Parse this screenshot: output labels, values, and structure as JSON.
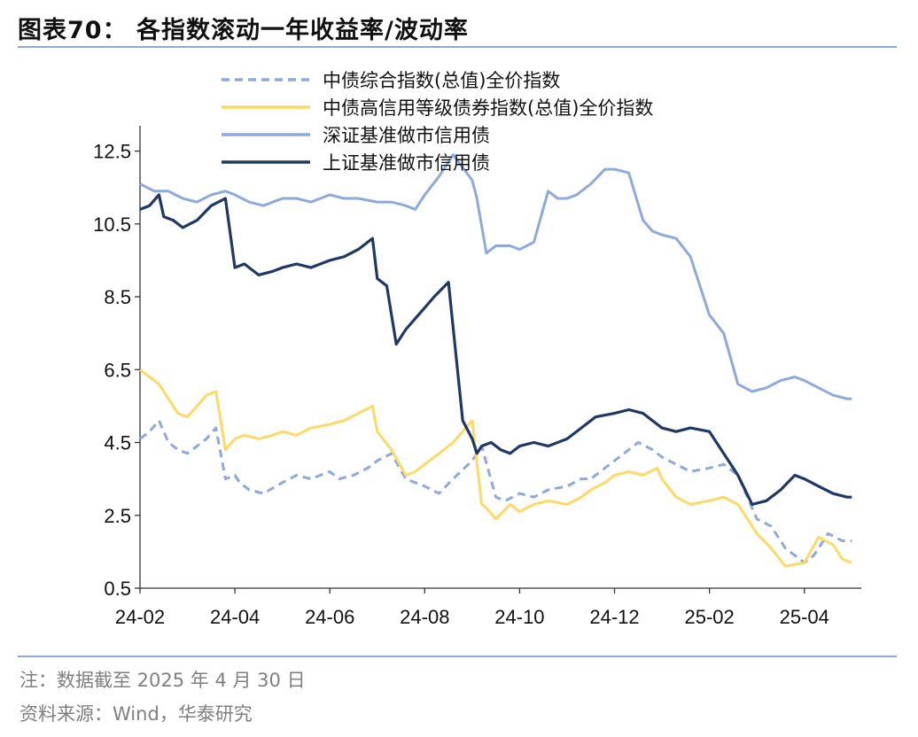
{
  "header": {
    "title": "图表70： 各指数滚动一年收益率/波动率"
  },
  "footer": {
    "note": "注：数据截至 2025 年 4 月 30 日",
    "source": "资料来源：Wind，华泰研究"
  },
  "chart_data": {
    "type": "line",
    "title": "图表70： 各指数滚动一年收益率/波动率",
    "xlabel": "",
    "ylabel": "",
    "x_ticks": [
      "24-02",
      "24-04",
      "24-06",
      "24-08",
      "24-10",
      "24-12",
      "25-02",
      "25-04"
    ],
    "y_ticks": [
      "0.5",
      "2.5",
      "4.5",
      "6.5",
      "8.5",
      "10.5",
      "12.5"
    ],
    "ylim": [
      0.5,
      13.0
    ],
    "grid": false,
    "legend_position": "top",
    "x_unit": "month index (0 = 2024-02-01)",
    "series": [
      {
        "name": "中债综合指数(总值)全价指数",
        "color": "#8ea9db",
        "style": "dashed",
        "x": [
          0,
          0.2,
          0.4,
          0.6,
          0.8,
          1.0,
          1.2,
          1.4,
          1.6,
          1.8,
          2.0,
          2.1,
          2.3,
          2.6,
          3.0,
          3.3,
          3.6,
          4.0,
          4.2,
          4.5,
          4.8,
          5.0,
          5.3,
          5.6,
          5.8,
          6.0,
          6.3,
          6.6,
          7.0,
          7.2,
          7.5,
          7.7,
          8.0,
          8.3,
          8.6,
          9.0,
          9.3,
          9.5,
          9.7,
          9.9,
          10.2,
          10.5,
          10.8,
          11.0,
          11.3,
          11.6,
          12.0,
          12.3,
          12.6,
          13.0,
          13.3,
          13.6,
          14.0,
          14.2,
          14.5,
          14.8,
          15.0
        ],
        "y": [
          4.6,
          4.8,
          5.1,
          4.5,
          4.3,
          4.2,
          4.4,
          4.6,
          4.9,
          3.5,
          3.6,
          3.4,
          3.2,
          3.1,
          3.4,
          3.6,
          3.5,
          3.7,
          3.5,
          3.6,
          3.8,
          4.0,
          4.2,
          3.5,
          3.4,
          3.3,
          3.1,
          3.5,
          4.0,
          4.4,
          3.0,
          2.9,
          3.1,
          3.0,
          3.2,
          3.3,
          3.5,
          3.5,
          3.7,
          3.9,
          4.2,
          4.5,
          4.3,
          4.1,
          3.9,
          3.7,
          3.8,
          3.9,
          3.6,
          2.4,
          2.2,
          1.6,
          1.2,
          1.4,
          2.0,
          1.8,
          1.8
        ]
      },
      {
        "name": "中债高信用等级债券指数(总值)全价指数",
        "color": "#ffd966",
        "style": "solid",
        "x": [
          0,
          0.2,
          0.4,
          0.6,
          0.8,
          1.0,
          1.2,
          1.4,
          1.6,
          1.8,
          2.0,
          2.2,
          2.5,
          2.8,
          3.0,
          3.3,
          3.6,
          4.0,
          4.3,
          4.6,
          4.9,
          5.0,
          5.3,
          5.6,
          5.8,
          6.0,
          6.3,
          6.6,
          7.0,
          7.2,
          7.3,
          7.5,
          7.8,
          8.0,
          8.3,
          8.6,
          9.0,
          9.3,
          9.5,
          9.8,
          10.0,
          10.3,
          10.6,
          10.9,
          11.0,
          11.3,
          11.6,
          12.0,
          12.3,
          12.6,
          13.0,
          13.3,
          13.6,
          14.0,
          14.3,
          14.6,
          14.8,
          15.0
        ],
        "y": [
          6.5,
          6.3,
          6.1,
          5.7,
          5.3,
          5.2,
          5.5,
          5.8,
          5.9,
          4.3,
          4.6,
          4.7,
          4.6,
          4.7,
          4.8,
          4.7,
          4.9,
          5.0,
          5.1,
          5.3,
          5.5,
          4.8,
          4.3,
          3.6,
          3.7,
          3.9,
          4.2,
          4.5,
          5.1,
          2.8,
          2.7,
          2.4,
          2.8,
          2.6,
          2.8,
          2.9,
          2.8,
          3.0,
          3.2,
          3.4,
          3.6,
          3.7,
          3.6,
          3.8,
          3.5,
          3.0,
          2.8,
          2.9,
          3.0,
          2.8,
          2.0,
          1.6,
          1.1,
          1.2,
          1.9,
          1.7,
          1.3,
          1.2
        ]
      },
      {
        "name": "深证基准做市信用债",
        "color": "#8eaadb",
        "style": "solid",
        "x": [
          0,
          0.3,
          0.6,
          0.9,
          1.2,
          1.5,
          1.8,
          2.0,
          2.3,
          2.6,
          3.0,
          3.3,
          3.6,
          4.0,
          4.3,
          4.6,
          5.0,
          5.3,
          5.6,
          5.8,
          6.0,
          6.3,
          6.6,
          7.0,
          7.1,
          7.3,
          7.5,
          7.8,
          8.0,
          8.3,
          8.6,
          8.8,
          9.0,
          9.2,
          9.5,
          9.8,
          10.0,
          10.3,
          10.6,
          10.8,
          11.0,
          11.3,
          11.6,
          12.0,
          12.3,
          12.6,
          12.9,
          13.2,
          13.5,
          13.8,
          14.0,
          14.3,
          14.6,
          14.9,
          15.0
        ],
        "y": [
          11.6,
          11.4,
          11.4,
          11.2,
          11.1,
          11.3,
          11.4,
          11.3,
          11.1,
          11.0,
          11.2,
          11.2,
          11.1,
          11.3,
          11.2,
          11.2,
          11.1,
          11.1,
          11.0,
          10.9,
          11.3,
          11.8,
          12.4,
          11.7,
          11.2,
          9.7,
          9.9,
          9.9,
          9.8,
          10.0,
          11.4,
          11.2,
          11.2,
          11.3,
          11.6,
          12.0,
          12.0,
          11.9,
          10.6,
          10.3,
          10.2,
          10.1,
          9.6,
          8.0,
          7.5,
          6.1,
          5.9,
          6.0,
          6.2,
          6.3,
          6.2,
          6.0,
          5.8,
          5.7,
          5.7
        ]
      },
      {
        "name": "上证基准做市信用债",
        "color": "#1f3864",
        "style": "solid",
        "x": [
          0,
          0.2,
          0.4,
          0.5,
          0.7,
          0.9,
          1.2,
          1.5,
          1.8,
          2.0,
          2.2,
          2.5,
          2.8,
          3.0,
          3.3,
          3.6,
          4.0,
          4.3,
          4.6,
          4.9,
          5.0,
          5.2,
          5.4,
          5.6,
          5.8,
          6.0,
          6.2,
          6.5,
          6.8,
          7.0,
          7.1,
          7.2,
          7.4,
          7.6,
          7.8,
          8.0,
          8.3,
          8.6,
          9.0,
          9.3,
          9.6,
          10.0,
          10.3,
          10.6,
          11.0,
          11.3,
          11.6,
          12.0,
          12.3,
          12.6,
          12.9,
          13.2,
          13.5,
          13.8,
          14.0,
          14.3,
          14.6,
          14.9,
          15.0
        ],
        "y": [
          10.9,
          11.0,
          11.3,
          10.7,
          10.6,
          10.4,
          10.6,
          11.0,
          11.2,
          9.3,
          9.4,
          9.1,
          9.2,
          9.3,
          9.4,
          9.3,
          9.5,
          9.6,
          9.8,
          10.1,
          9.0,
          8.8,
          7.2,
          7.6,
          7.9,
          8.2,
          8.5,
          8.9,
          5.1,
          4.6,
          4.2,
          4.4,
          4.5,
          4.3,
          4.2,
          4.4,
          4.5,
          4.4,
          4.6,
          4.9,
          5.2,
          5.3,
          5.4,
          5.3,
          4.9,
          4.8,
          4.9,
          4.8,
          4.2,
          3.6,
          2.8,
          2.9,
          3.2,
          3.6,
          3.5,
          3.3,
          3.1,
          3.0,
          3.0
        ]
      }
    ]
  }
}
